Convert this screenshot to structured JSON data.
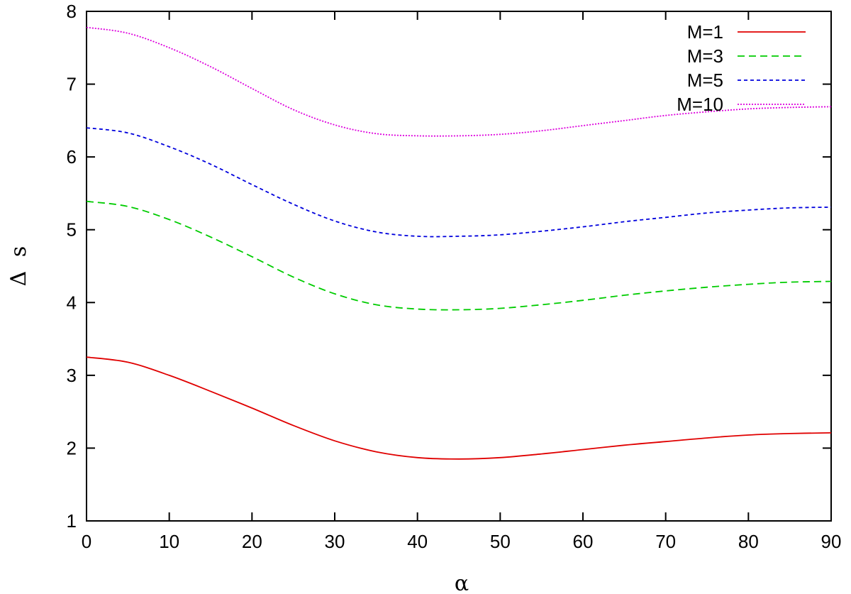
{
  "chart_data": {
    "type": "line",
    "title": "",
    "xlabel": "α",
    "ylabel": "Δ s̄",
    "ylabel_parts": {
      "symbol": "Δ",
      "var": "s",
      "bar": "¯"
    },
    "xlim": [
      0,
      90
    ],
    "ylim": [
      1,
      8
    ],
    "x_ticks": [
      0,
      10,
      20,
      30,
      40,
      50,
      60,
      70,
      80,
      90
    ],
    "y_ticks": [
      1,
      2,
      3,
      4,
      5,
      6,
      7,
      8
    ],
    "grid": false,
    "legend_position": "top-right",
    "x": [
      0,
      5,
      10,
      15,
      20,
      25,
      30,
      35,
      40,
      45,
      50,
      55,
      60,
      65,
      70,
      75,
      80,
      85,
      90
    ],
    "series": [
      {
        "name": "M=1",
        "color": "#e00000",
        "dash": "solid",
        "values": [
          3.25,
          3.18,
          3.0,
          2.78,
          2.55,
          2.31,
          2.1,
          1.95,
          1.87,
          1.85,
          1.87,
          1.92,
          1.98,
          2.04,
          2.09,
          2.14,
          2.18,
          2.2,
          2.21
        ]
      },
      {
        "name": "M=3",
        "color": "#00cc00",
        "dash": "dashed",
        "values": [
          5.39,
          5.32,
          5.14,
          4.9,
          4.63,
          4.35,
          4.12,
          3.97,
          3.91,
          3.9,
          3.92,
          3.97,
          4.03,
          4.1,
          4.16,
          4.21,
          4.25,
          4.28,
          4.29
        ]
      },
      {
        "name": "M=5",
        "color": "#0000dd",
        "dash": "short-dashed",
        "values": [
          6.4,
          6.33,
          6.14,
          5.9,
          5.62,
          5.35,
          5.12,
          4.97,
          4.91,
          4.91,
          4.93,
          4.98,
          5.04,
          5.11,
          5.17,
          5.23,
          5.27,
          5.3,
          5.31
        ]
      },
      {
        "name": "M=10",
        "color": "#dd00dd",
        "dash": "dotted",
        "values": [
          7.78,
          7.7,
          7.5,
          7.24,
          6.94,
          6.65,
          6.44,
          6.32,
          6.29,
          6.29,
          6.31,
          6.36,
          6.43,
          6.5,
          6.57,
          6.62,
          6.66,
          6.68,
          6.69
        ]
      }
    ]
  }
}
